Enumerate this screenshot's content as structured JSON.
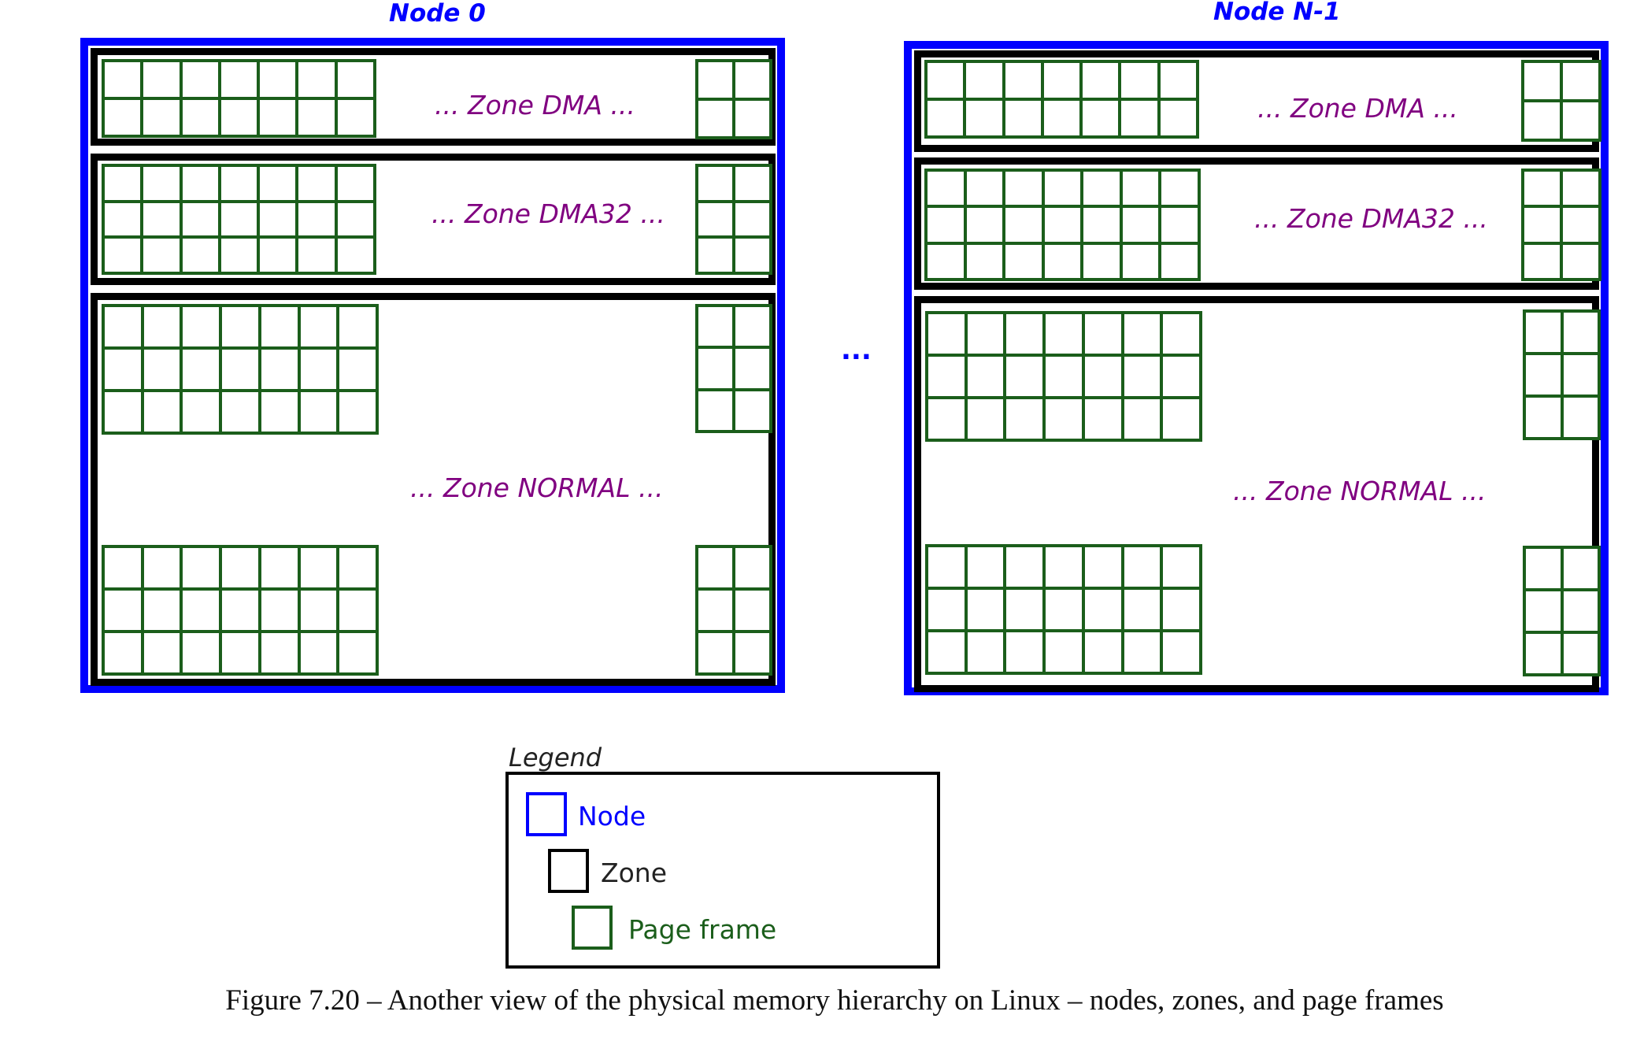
{
  "nodes": [
    {
      "title": "Node 0",
      "zones": [
        {
          "label": "... Zone DMA ..."
        },
        {
          "label": "... Zone DMA32 ..."
        },
        {
          "label": "... Zone NORMAL ..."
        }
      ]
    },
    {
      "title": "Node N-1",
      "zones": [
        {
          "label": "... Zone DMA ..."
        },
        {
          "label": "... Zone DMA32 ..."
        },
        {
          "label": "... Zone NORMAL ..."
        }
      ]
    }
  ],
  "between_nodes": "...",
  "legend": {
    "title": "Legend",
    "items": [
      {
        "label": "Node",
        "color": "#0000ff"
      },
      {
        "label": "Zone",
        "color": "#000000"
      },
      {
        "label": "Page frame",
        "color": "#1b5e1b"
      }
    ]
  },
  "caption": "Figure 7.20 – Another view of the physical memory hierarchy on Linux – nodes, zones, and page frames",
  "colors": {
    "node": "#0000ff",
    "zone": "#000000",
    "page_frame": "#1b5e1b",
    "zone_label": "#800080"
  }
}
